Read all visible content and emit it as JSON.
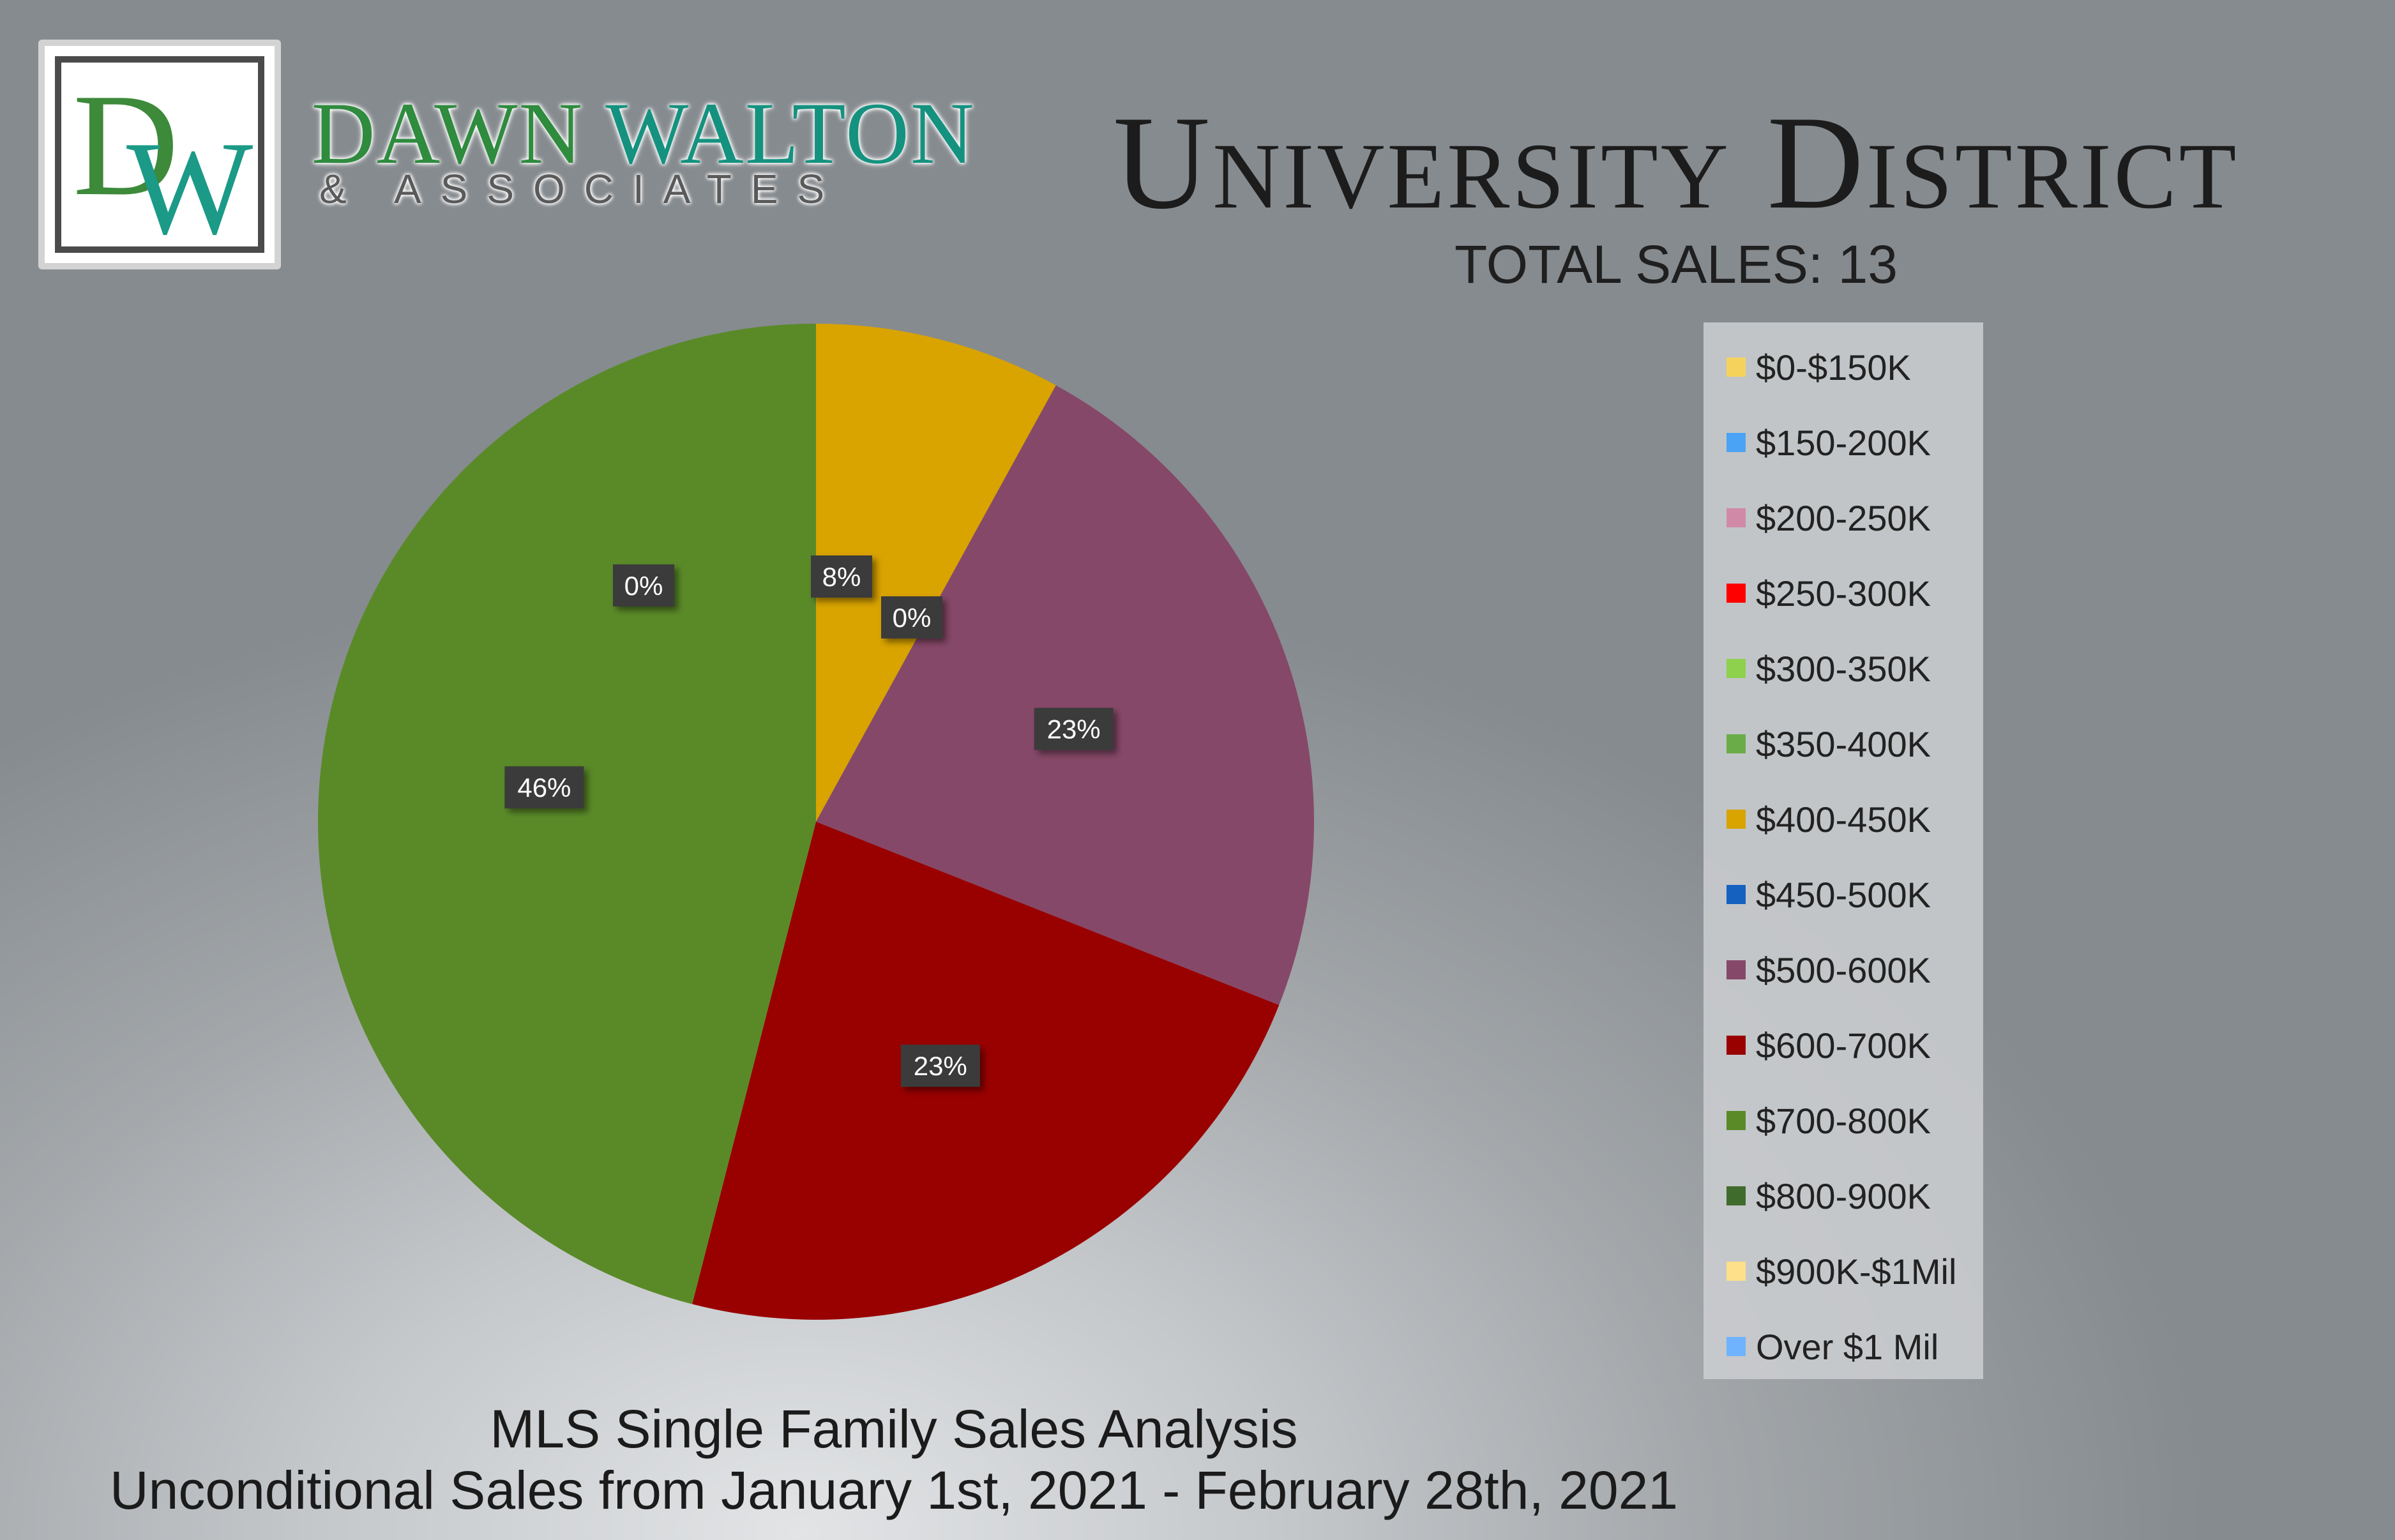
{
  "brand": {
    "logo_d": "D",
    "logo_w": "W",
    "name_part1": "DAWN ",
    "name_part2": "WALTON",
    "subtitle": "& ASSOCIATES"
  },
  "header": {
    "title": "University District",
    "total_sales": "TOTAL SALES: 13"
  },
  "footer": {
    "line1": "MLS Single Family Sales Analysis",
    "line2": "Unconditional Sales from January 1st, 2021 - February 28th, 2021"
  },
  "chart_data": {
    "type": "pie",
    "title": "",
    "total_sales": 13,
    "legend_position": "right",
    "slices": [
      {
        "label": "$0-$150K",
        "value": 0,
        "percent_label": "",
        "color": "#f5d25c"
      },
      {
        "label": "$150-200K",
        "value": 0,
        "percent_label": "",
        "color": "#4ba3f5"
      },
      {
        "label": "$200-250K",
        "value": 0,
        "percent_label": "",
        "color": "#d08aa8"
      },
      {
        "label": "$250-300K",
        "value": 0,
        "percent_label": "",
        "color": "#ff0000"
      },
      {
        "label": "$300-350K",
        "value": 0,
        "percent_label": "",
        "color": "#8ed14c"
      },
      {
        "label": "$350-400K",
        "value": 0,
        "percent_label": "",
        "color": "#6aad48"
      },
      {
        "label": "$400-450K",
        "value": 8,
        "percent_label": "8%",
        "color": "#d9a300"
      },
      {
        "label": "$450-500K",
        "value": 0,
        "percent_label": "0%",
        "color": "#1561c0"
      },
      {
        "label": "$500-600K",
        "value": 23,
        "percent_label": "23%",
        "color": "#864868"
      },
      {
        "label": "$600-700K",
        "value": 23,
        "percent_label": "23%",
        "color": "#990000"
      },
      {
        "label": "$700-800K",
        "value": 46,
        "percent_label": "46%",
        "color": "#5a8a28"
      },
      {
        "label": "$800-900K",
        "value": 0,
        "percent_label": "",
        "color": "#3f6b2c"
      },
      {
        "label": "$900K-$1Mil",
        "value": 0,
        "percent_label": "",
        "color": "#ffe08a"
      },
      {
        "label": "Over $1 Mil",
        "value": 0,
        "percent_label": "0%",
        "color": "#6fb3ff"
      }
    ]
  }
}
